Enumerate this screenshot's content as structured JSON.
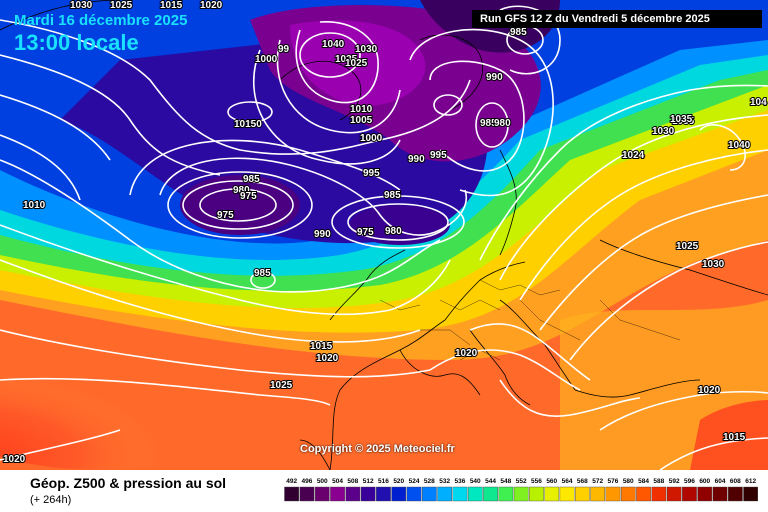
{
  "header": {
    "date": "Mardi 16 décembre 2025",
    "time": "13:00 locale",
    "run": "Run GFS 12 Z du Vendredi 5 décembre 2025"
  },
  "map": {
    "copyright": "Copyright © 2025 Meteociel.fr",
    "pressure_labels": [
      {
        "text": "1030"
      },
      {
        "text": "1025"
      },
      {
        "text": "1015"
      },
      {
        "text": "1020"
      },
      {
        "text": "1000"
      },
      {
        "text": "99"
      },
      {
        "text": "1040"
      },
      {
        "text": "1035"
      },
      {
        "text": "1030"
      },
      {
        "text": "1025"
      },
      {
        "text": "985"
      },
      {
        "text": "990"
      },
      {
        "text": "1010"
      },
      {
        "text": "1005"
      },
      {
        "text": "1000"
      },
      {
        "text": "990"
      },
      {
        "text": "995"
      },
      {
        "text": "985"
      },
      {
        "text": "980"
      },
      {
        "text": "1035"
      },
      {
        "text": "1030"
      },
      {
        "text": "1024"
      },
      {
        "text": "1040"
      },
      {
        "text": "104"
      },
      {
        "text": "10150"
      },
      {
        "text": "985"
      },
      {
        "text": "980"
      },
      {
        "text": "975"
      },
      {
        "text": "975"
      },
      {
        "text": "995"
      },
      {
        "text": "990"
      },
      {
        "text": "985"
      },
      {
        "text": "975"
      },
      {
        "text": "980"
      },
      {
        "text": "1010"
      },
      {
        "text": "985"
      },
      {
        "text": "1025"
      },
      {
        "text": "1030"
      },
      {
        "text": "1015"
      },
      {
        "text": "1020"
      },
      {
        "text": "1020"
      },
      {
        "text": "1025"
      },
      {
        "text": "1020"
      },
      {
        "text": "1015"
      },
      {
        "text": "1020"
      },
      {
        "text": "1035"
      }
    ]
  },
  "footer": {
    "title": "Géop. Z500 & pression au sol",
    "lead": "(+ 264h)"
  },
  "legend": {
    "values": [
      "492",
      "496",
      "500",
      "504",
      "508",
      "512",
      "516",
      "520",
      "524",
      "528",
      "532",
      "536",
      "540",
      "544",
      "548",
      "552",
      "556",
      "560",
      "564",
      "568",
      "572",
      "576",
      "580",
      "584",
      "588",
      "592",
      "596",
      "600",
      "604",
      "608",
      "612"
    ],
    "colors": [
      "#300030",
      "#4a0050",
      "#6a006e",
      "#8a0090",
      "#5a008a",
      "#3a009a",
      "#2010b0",
      "#0020d0",
      "#0050f0",
      "#0080ff",
      "#00b0ff",
      "#00d8f0",
      "#00e8c0",
      "#10e890",
      "#40f050",
      "#80f020",
      "#b8f000",
      "#e8f000",
      "#ffe800",
      "#ffd000",
      "#ffb800",
      "#ff9800",
      "#ff7800",
      "#ff5800",
      "#f03000",
      "#d01800",
      "#b00800",
      "#900000",
      "#700000",
      "#500000",
      "#300000"
    ]
  }
}
